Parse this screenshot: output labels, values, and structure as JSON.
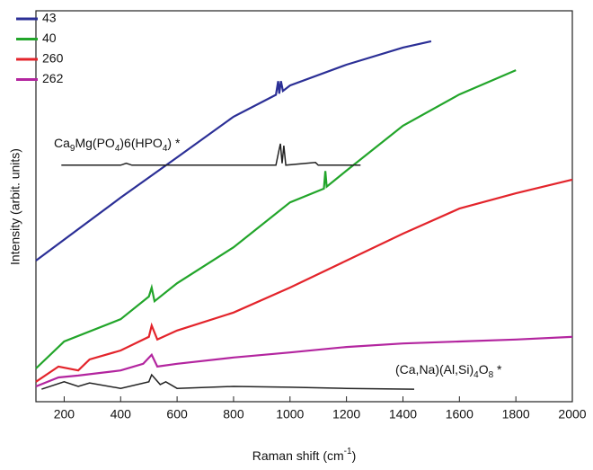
{
  "chart_data": {
    "type": "line",
    "x_label": [
      "Raman shift (cm",
      "-1",
      ")"
    ],
    "y_label": "Intensity (arbit. units)",
    "xlim": [
      100,
      2000
    ],
    "ylim": [
      0,
      100
    ],
    "xticks": [
      200,
      400,
      600,
      800,
      1000,
      1200,
      1400,
      1600,
      1800,
      2000
    ],
    "series": [
      {
        "name": "43",
        "color": "#2b2f96",
        "x": [
          100,
          400,
          600,
          800,
          950,
          958,
          962,
          968,
          975,
          1000,
          1200,
          1400,
          1500
        ],
        "values": [
          36.1,
          52.2,
          62.5,
          72.9,
          78.5,
          82.0,
          78.8,
          82.0,
          79.5,
          80.9,
          86.2,
          90.6,
          92.2
        ]
      },
      {
        "name": "40",
        "color": "#22a52a",
        "x": [
          100,
          200,
          400,
          500,
          510,
          520,
          600,
          800,
          1000,
          1120,
          1125,
          1130,
          1200,
          1400,
          1600,
          1800
        ],
        "values": [
          8.5,
          15.4,
          21.1,
          26.9,
          29.2,
          25.7,
          30.3,
          39.5,
          51.0,
          54.5,
          59.0,
          55.0,
          59.1,
          70.6,
          78.6,
          84.8
        ]
      },
      {
        "name": "260",
        "color": "#e3242b",
        "x": [
          100,
          180,
          250,
          290,
          400,
          500,
          510,
          530,
          600,
          800,
          1000,
          1200,
          1400,
          1600,
          1800,
          2000
        ],
        "values": [
          5.1,
          9.0,
          8.0,
          10.8,
          13.1,
          16.6,
          19.5,
          15.9,
          18.2,
          22.8,
          29.2,
          36.1,
          43.0,
          49.4,
          53.3,
          56.8
        ]
      },
      {
        "name": "262",
        "color": "#b3259f",
        "x": [
          100,
          180,
          250,
          400,
          480,
          510,
          530,
          600,
          800,
          1000,
          1200,
          1400,
          1600,
          1800,
          2000
        ],
        "values": [
          3.9,
          6.2,
          6.7,
          8.0,
          9.7,
          12.0,
          9.0,
          9.7,
          11.3,
          12.6,
          14.0,
          14.9,
          15.4,
          15.9,
          16.6
        ]
      }
    ],
    "references": [
      {
        "label": [
          "Ca",
          "9",
          "Mg(PO",
          "4",
          ")6(HPO",
          "4",
          ") *"
        ],
        "color": "#222222",
        "x": [
          190,
          400,
          420,
          440,
          950,
          960,
          966,
          972,
          978,
          985,
          1090,
          1100,
          1250
        ],
        "values": [
          60.5,
          60.5,
          61.0,
          60.5,
          60.5,
          64.0,
          66.0,
          61.0,
          65.5,
          60.5,
          61.2,
          60.5,
          60.5
        ]
      },
      {
        "label": [
          "(Ca,Na)(Al,Si)",
          "4",
          "O",
          "8",
          " *"
        ],
        "color": "#222222",
        "x": [
          120,
          200,
          250,
          290,
          400,
          500,
          510,
          540,
          560,
          600,
          800,
          1000,
          1200,
          1440
        ],
        "values": [
          3.2,
          5.1,
          3.9,
          4.8,
          3.4,
          5.1,
          6.9,
          4.4,
          5.1,
          3.4,
          3.9,
          3.7,
          3.4,
          3.2
        ]
      }
    ]
  }
}
